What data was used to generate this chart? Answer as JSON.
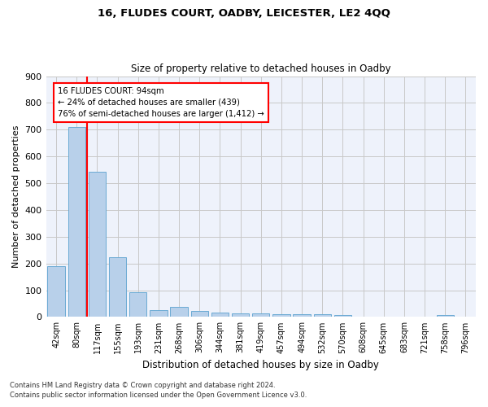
{
  "title1": "16, FLUDES COURT, OADBY, LEICESTER, LE2 4QQ",
  "title2": "Size of property relative to detached houses in Oadby",
  "xlabel": "Distribution of detached houses by size in Oadby",
  "ylabel": "Number of detached properties",
  "categories": [
    "42sqm",
    "80sqm",
    "117sqm",
    "155sqm",
    "193sqm",
    "231sqm",
    "268sqm",
    "306sqm",
    "344sqm",
    "381sqm",
    "419sqm",
    "457sqm",
    "494sqm",
    "532sqm",
    "570sqm",
    "608sqm",
    "645sqm",
    "683sqm",
    "721sqm",
    "758sqm",
    "796sqm"
  ],
  "values": [
    190,
    710,
    543,
    224,
    92,
    27,
    37,
    23,
    15,
    13,
    13,
    11,
    10,
    10,
    8,
    0,
    0,
    0,
    0,
    8,
    0
  ],
  "bar_color": "#b8d0ea",
  "bar_edge_color": "#6aaad4",
  "vline_x": 1.5,
  "vline_color": "red",
  "annotation_text": "16 FLUDES COURT: 94sqm\n← 24% of detached houses are smaller (439)\n76% of semi-detached houses are larger (1,412) →",
  "annotation_box_color": "white",
  "annotation_box_edge": "red",
  "ylim": [
    0,
    900
  ],
  "yticks": [
    0,
    100,
    200,
    300,
    400,
    500,
    600,
    700,
    800,
    900
  ],
  "footer1": "Contains HM Land Registry data © Crown copyright and database right 2024.",
  "footer2": "Contains public sector information licensed under the Open Government Licence v3.0.",
  "bg_color": "#eef2fb",
  "grid_color": "#c8c8c8"
}
